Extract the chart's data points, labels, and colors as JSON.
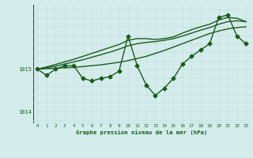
{
  "hours": [
    0,
    1,
    2,
    3,
    4,
    5,
    6,
    7,
    8,
    9,
    10,
    11,
    12,
    13,
    14,
    15,
    16,
    17,
    18,
    19,
    20,
    21,
    22,
    23
  ],
  "pressure": [
    1015.0,
    1014.85,
    1015.0,
    1015.08,
    1015.08,
    1014.78,
    1014.72,
    1014.78,
    1014.82,
    1014.95,
    1015.78,
    1015.08,
    1014.62,
    1014.38,
    1014.55,
    1014.78,
    1015.12,
    1015.3,
    1015.45,
    1015.6,
    1016.22,
    1016.28,
    1015.78,
    1015.6
  ],
  "smooth1": [
    1015.0,
    1015.01,
    1015.02,
    1015.03,
    1015.04,
    1015.06,
    1015.08,
    1015.1,
    1015.13,
    1015.16,
    1015.2,
    1015.25,
    1015.3,
    1015.37,
    1015.44,
    1015.52,
    1015.6,
    1015.68,
    1015.76,
    1015.84,
    1015.9,
    1015.95,
    1015.98,
    1016.0
  ],
  "smooth2": [
    1015.0,
    1015.03,
    1015.07,
    1015.12,
    1015.17,
    1015.22,
    1015.28,
    1015.34,
    1015.4,
    1015.47,
    1015.55,
    1015.6,
    1015.63,
    1015.65,
    1015.68,
    1015.72,
    1015.78,
    1015.85,
    1015.92,
    1015.98,
    1016.06,
    1016.12,
    1016.14,
    1016.12
  ],
  "smooth3": [
    1015.0,
    1015.05,
    1015.11,
    1015.17,
    1015.23,
    1015.3,
    1015.37,
    1015.44,
    1015.51,
    1015.58,
    1015.68,
    1015.72,
    1015.72,
    1015.7,
    1015.72,
    1015.76,
    1015.85,
    1015.93,
    1016.0,
    1016.06,
    1016.16,
    1016.22,
    1016.2,
    1016.12
  ],
  "line_color": "#1a5c1a",
  "bg_color": "#d4ecec",
  "grid_h_color": "#c8dede",
  "grid_v_color": "#c8dede",
  "xlabel": "Graphe pression niveau de la mer (hPa)",
  "ylim": [
    1013.72,
    1016.52
  ],
  "xlim": [
    -0.5,
    23.5
  ],
  "yticks": [
    1014,
    1015
  ],
  "xticks": [
    0,
    1,
    2,
    3,
    4,
    5,
    6,
    7,
    8,
    9,
    10,
    11,
    12,
    13,
    14,
    15,
    16,
    17,
    18,
    19,
    20,
    21,
    22,
    23
  ],
  "marker": "D",
  "markersize": 2.5,
  "linewidth": 1.0
}
